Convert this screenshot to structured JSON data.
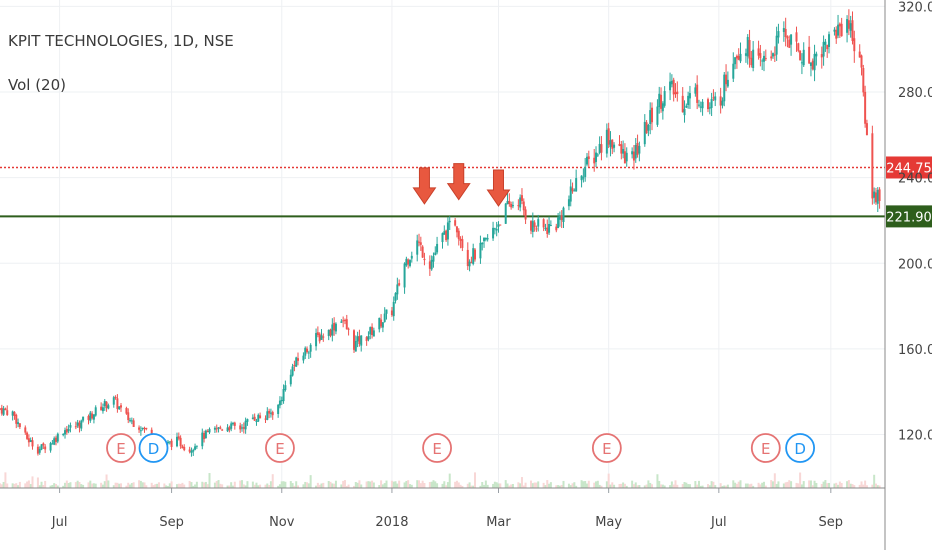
{
  "header": {
    "symbol_title": "KPIT TECHNOLOGIES, 1D, NSE",
    "volume_label": "Vol (20)"
  },
  "colors": {
    "up": "#26a69a",
    "down": "#ef5350",
    "support_line": "#2e5e1c",
    "price_line": "#e53935",
    "arrow": "#e8583f",
    "event_earnings": "#e57373",
    "event_dividend": "#2196f3",
    "grid": "#eef0f3",
    "axis_text": "#444444"
  },
  "chart_data": {
    "type": "candlestick",
    "interval": "1D",
    "ylim": [
      95,
      323
    ],
    "y_ticks": [
      "120.00",
      "160.00",
      "200.00",
      "240.00",
      "280.00",
      "320.00"
    ],
    "y_tick_values": [
      120,
      160,
      200,
      240,
      280,
      320
    ],
    "x_ticks": [
      "Jul",
      "Sep",
      "Nov",
      "2018",
      "Mar",
      "May",
      "Jul",
      "Sep"
    ],
    "x_tick_dates": [
      "2017-07-01",
      "2017-09-01",
      "2017-11-01",
      "2018-01-01",
      "2018-03-01",
      "2018-05-01",
      "2018-07-01",
      "2018-09-01"
    ],
    "date_range": [
      "2017-05-29",
      "2018-10-01"
    ],
    "price_levels": [
      {
        "label": "244.75",
        "value": 244.75,
        "style": "dotted",
        "color": "#e53935"
      },
      {
        "label": "221.90",
        "value": 221.9,
        "style": "solid",
        "color": "#2e5e1c"
      }
    ],
    "arrows": [
      {
        "date": "2018-01-19",
        "value": 224
      },
      {
        "date": "2018-02-07",
        "value": 226
      },
      {
        "date": "2018-03-01",
        "value": 223
      }
    ],
    "events": [
      {
        "type": "E",
        "date": "2017-08-04"
      },
      {
        "type": "D",
        "date": "2017-08-22"
      },
      {
        "type": "E",
        "date": "2017-10-31"
      },
      {
        "type": "E",
        "date": "2018-01-26"
      },
      {
        "type": "E",
        "date": "2018-04-30"
      },
      {
        "type": "E",
        "date": "2018-07-27"
      },
      {
        "type": "D",
        "date": "2018-08-15"
      }
    ],
    "price_path": [
      [
        "2017-05-29",
        132
      ],
      [
        "2017-06-05",
        130
      ],
      [
        "2017-06-12",
        119
      ],
      [
        "2017-06-19",
        113
      ],
      [
        "2017-06-26",
        116
      ],
      [
        "2017-07-03",
        122
      ],
      [
        "2017-07-10",
        124
      ],
      [
        "2017-07-17",
        128
      ],
      [
        "2017-07-24",
        133
      ],
      [
        "2017-07-31",
        136
      ],
      [
        "2017-08-07",
        128
      ],
      [
        "2017-08-14",
        124
      ],
      [
        "2017-08-21",
        120
      ],
      [
        "2017-08-28",
        115
      ],
      [
        "2017-09-04",
        117
      ],
      [
        "2017-09-11",
        113
      ],
      [
        "2017-09-18",
        119
      ],
      [
        "2017-09-25",
        122
      ],
      [
        "2017-10-02",
        124
      ],
      [
        "2017-10-09",
        123
      ],
      [
        "2017-10-16",
        128
      ],
      [
        "2017-10-23",
        128
      ],
      [
        "2017-10-30",
        133
      ],
      [
        "2017-11-06",
        150
      ],
      [
        "2017-11-13",
        158
      ],
      [
        "2017-11-20",
        165
      ],
      [
        "2017-11-27",
        168
      ],
      [
        "2017-12-04",
        175
      ],
      [
        "2017-12-11",
        162
      ],
      [
        "2017-12-18",
        166
      ],
      [
        "2017-12-25",
        172
      ],
      [
        "2018-01-01",
        178
      ],
      [
        "2018-01-08",
        200
      ],
      [
        "2018-01-15",
        210
      ],
      [
        "2018-01-22",
        200
      ],
      [
        "2018-01-29",
        212
      ],
      [
        "2018-02-05",
        220
      ],
      [
        "2018-02-12",
        202
      ],
      [
        "2018-02-19",
        206
      ],
      [
        "2018-02-26",
        215
      ],
      [
        "2018-03-05",
        225
      ],
      [
        "2018-03-12",
        230
      ],
      [
        "2018-03-19",
        218
      ],
      [
        "2018-03-26",
        216
      ],
      [
        "2018-04-02",
        218
      ],
      [
        "2018-04-09",
        230
      ],
      [
        "2018-04-16",
        243
      ],
      [
        "2018-04-23",
        250
      ],
      [
        "2018-04-30",
        260
      ],
      [
        "2018-05-07",
        252
      ],
      [
        "2018-05-14",
        248
      ],
      [
        "2018-05-21",
        262
      ],
      [
        "2018-05-28",
        275
      ],
      [
        "2018-06-04",
        282
      ],
      [
        "2018-06-11",
        275
      ],
      [
        "2018-06-18",
        280
      ],
      [
        "2018-06-25",
        272
      ],
      [
        "2018-07-02",
        278
      ],
      [
        "2018-07-09",
        298
      ],
      [
        "2018-07-16",
        302
      ],
      [
        "2018-07-23",
        292
      ],
      [
        "2018-07-30",
        298
      ],
      [
        "2018-08-06",
        308
      ],
      [
        "2018-08-13",
        300
      ],
      [
        "2018-08-20",
        294
      ],
      [
        "2018-08-27",
        300
      ],
      [
        "2018-09-03",
        308
      ],
      [
        "2018-09-10",
        314
      ],
      [
        "2018-09-17",
        296
      ],
      [
        "2018-09-24",
        232
      ]
    ]
  }
}
